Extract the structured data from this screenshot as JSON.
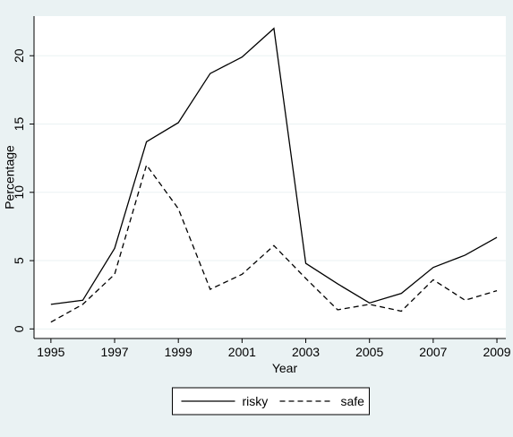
{
  "chart_data": {
    "type": "line",
    "x_label": "Year",
    "y_label": "Percentage",
    "x": [
      1995,
      1996,
      1997,
      1998,
      1999,
      2000,
      2001,
      2002,
      2003,
      2004,
      2005,
      2006,
      2007,
      2008,
      2009
    ],
    "series": [
      {
        "name": "risky",
        "color": "#000000",
        "line_style": "solid",
        "values": [
          1.8,
          2.1,
          5.9,
          13.7,
          15.1,
          18.7,
          19.9,
          22.0,
          4.8,
          3.3,
          1.9,
          2.6,
          4.5,
          5.4,
          6.7
        ]
      },
      {
        "name": "safe",
        "color": "#000000",
        "line_style": "dashed",
        "values": [
          0.5,
          1.8,
          4.0,
          12.0,
          8.8,
          2.9,
          4.0,
          6.1,
          3.7,
          1.4,
          1.8,
          1.3,
          3.6,
          2.1,
          2.8
        ]
      }
    ],
    "xlim": [
      1994.47,
      2009.28
    ],
    "xticks": [
      1995,
      1997,
      1999,
      2001,
      2003,
      2005,
      2007,
      2009
    ],
    "ylim": [
      -0.7,
      22.9
    ],
    "yticks": [
      0,
      5,
      10,
      15,
      20
    ],
    "grid": true,
    "legend_position": "bottom"
  }
}
